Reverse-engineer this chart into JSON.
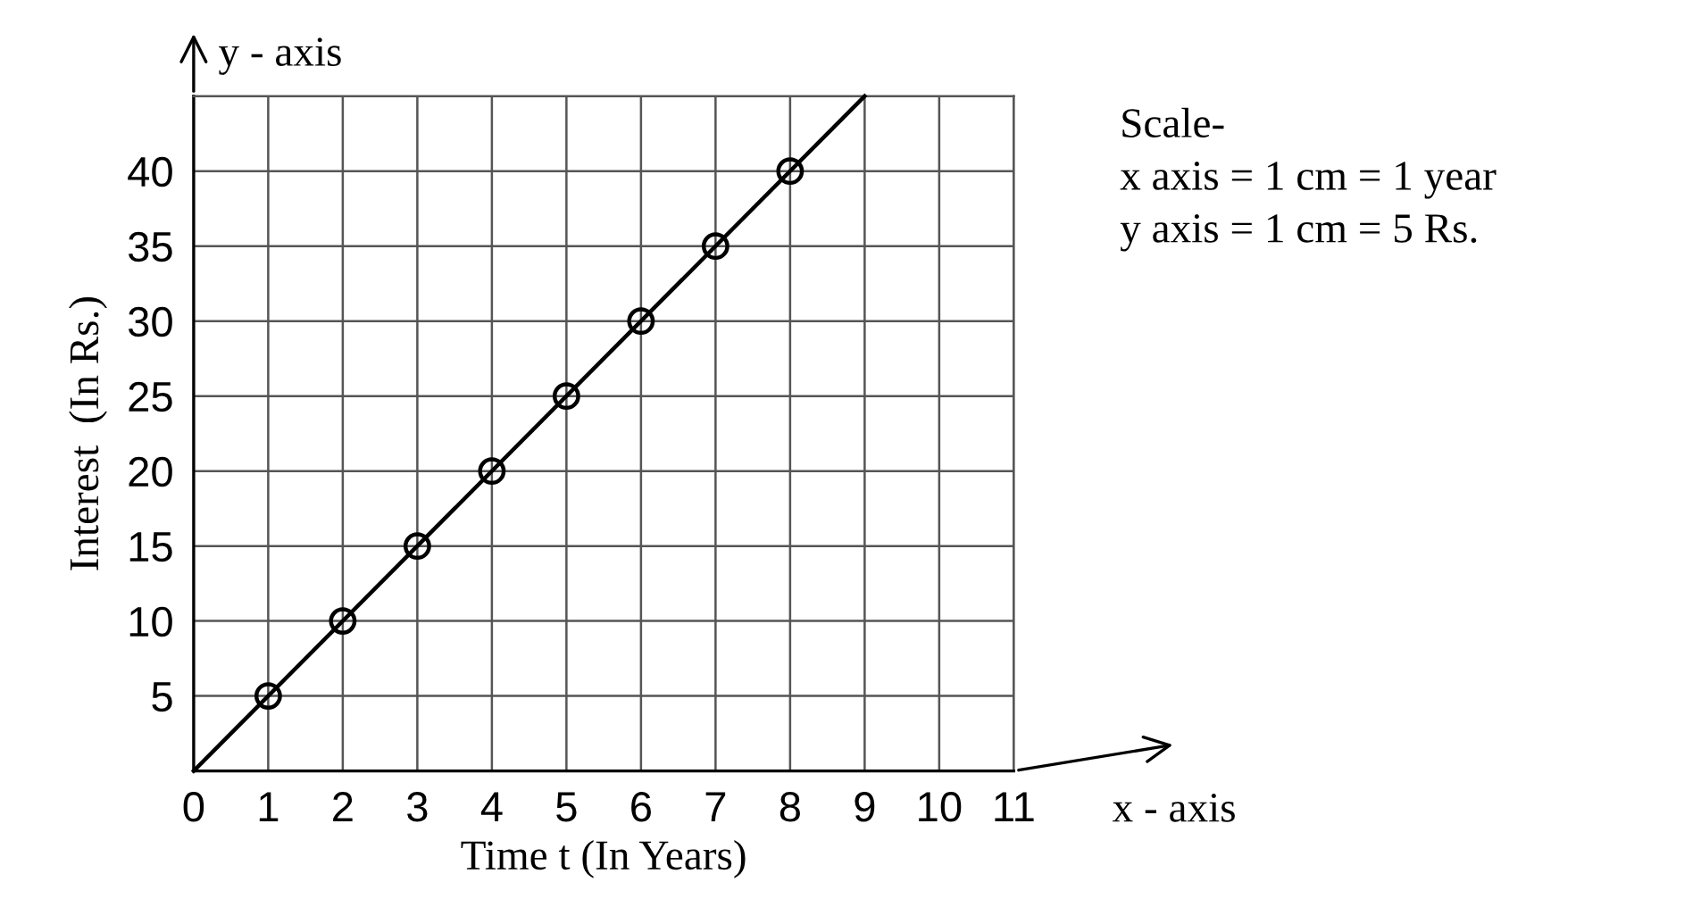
{
  "chart_data": {
    "type": "line",
    "xlabel": "Time t (In Years)",
    "ylabel": "Interest  (In Rs.)",
    "x": [
      1,
      2,
      3,
      4,
      5,
      6,
      7,
      8
    ],
    "series": [
      {
        "type": "scatter",
        "color": "#000000",
        "marker": "circle",
        "values": [
          5,
          10,
          15,
          20,
          25,
          30,
          35,
          40
        ]
      },
      {
        "color": "#000000",
        "x": [
          0,
          9
        ],
        "values": [
          0,
          45
        ]
      }
    ],
    "xlim": [
      0,
      11
    ],
    "ylim": [
      0,
      45
    ],
    "xticks": [
      0,
      1,
      2,
      3,
      4,
      5,
      6,
      7,
      8,
      9,
      10,
      11
    ],
    "yticks": [
      5,
      10,
      15,
      20,
      25,
      30,
      35,
      40
    ],
    "grid": true,
    "legend": false,
    "annotations": [
      "y - axis",
      "x - axis",
      "Scale-",
      "x axis = 1 cm = 1 year",
      "y axis = 1 cm = 5 Rs."
    ]
  }
}
